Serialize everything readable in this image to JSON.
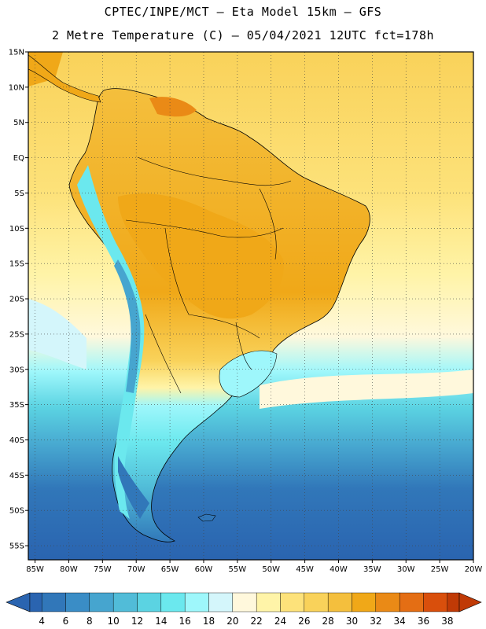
{
  "title": {
    "line1": "CPTEC/INPE/MCT –  Eta Model 15km – GFS",
    "line2": "2 Metre Temperature (C) – 05/04/2021 12UTC fct=178h"
  },
  "map": {
    "lat_labels": [
      "15N",
      "10N",
      "5N",
      "EQ",
      "5S",
      "10S",
      "15S",
      "20S",
      "25S",
      "30S",
      "35S",
      "40S",
      "45S",
      "50S",
      "55S"
    ],
    "lon_labels": [
      "85W",
      "80W",
      "75W",
      "70W",
      "65W",
      "60W",
      "55W",
      "50W",
      "45W",
      "40W",
      "35W",
      "30W",
      "25W",
      "20W"
    ],
    "lat_range": [
      15,
      -57
    ],
    "lon_range": [
      -86,
      -20
    ]
  },
  "colorbar": {
    "labels": [
      "4",
      "6",
      "8",
      "10",
      "12",
      "14",
      "16",
      "18",
      "20",
      "22",
      "24",
      "26",
      "28",
      "30",
      "32",
      "34",
      "36",
      "38"
    ],
    "colors": [
      "#2a64b0",
      "#3177b9",
      "#3a8dc6",
      "#46a5cf",
      "#51bcd8",
      "#5bd3e2",
      "#6be8ee",
      "#9ef7fb",
      "#d4f6fb",
      "#fff8dc",
      "#fff4a8",
      "#fde27a",
      "#f9d25a",
      "#f4bf3d",
      "#f0a818",
      "#ea8a16",
      "#e46e14",
      "#d94f0c",
      "#c03a06"
    ]
  }
}
